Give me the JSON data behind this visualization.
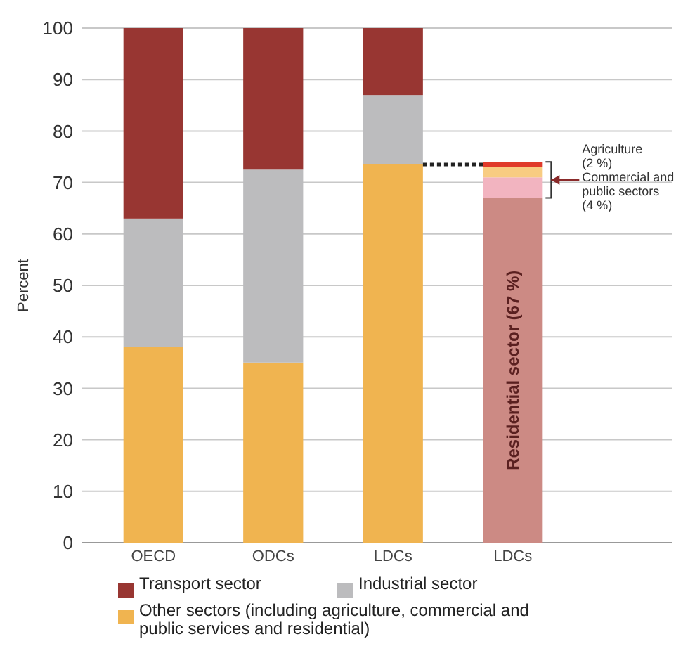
{
  "chart_data": {
    "type": "bar",
    "stacked": true,
    "ylabel": "Percent",
    "categories": [
      "OECD",
      "ODCs",
      "LDCs",
      "LDCs"
    ],
    "series": [
      {
        "name": "Other sectors (including agriculture, commercial and public services and residential)",
        "color": "#f0b450",
        "values": [
          38,
          35,
          73.5,
          null
        ]
      },
      {
        "name": "Industrial sector",
        "color": "#bcbcbe",
        "values": [
          25,
          37.5,
          13.5,
          null
        ]
      },
      {
        "name": "Transport sector",
        "color": "#983632",
        "values": [
          37,
          27.5,
          13,
          null
        ]
      },
      {
        "color": "#cc8a84",
        "values": [
          null,
          null,
          null,
          67
        ]
      },
      {
        "color": "#f2b4c0",
        "values": [
          null,
          null,
          null,
          4
        ]
      },
      {
        "color": "#f8cc82",
        "values": [
          null,
          null,
          null,
          2
        ]
      },
      {
        "color": "#e03a2a",
        "values": [
          null,
          null,
          null,
          1
        ]
      }
    ],
    "annotations": [
      "Residential sector (67 %)",
      "Agriculture (2 %)",
      "Commercial and public sectors (4 %)"
    ],
    "ref_lines": [
      {
        "axis": "y",
        "value": 73.5,
        "color": "#222222",
        "line_style": "dotted"
      }
    ],
    "ylim": [
      0,
      100
    ],
    "yticks": [
      0,
      10,
      20,
      30,
      40,
      50,
      60,
      70,
      80,
      90,
      100
    ],
    "grid": "y",
    "legend": "bottom"
  }
}
